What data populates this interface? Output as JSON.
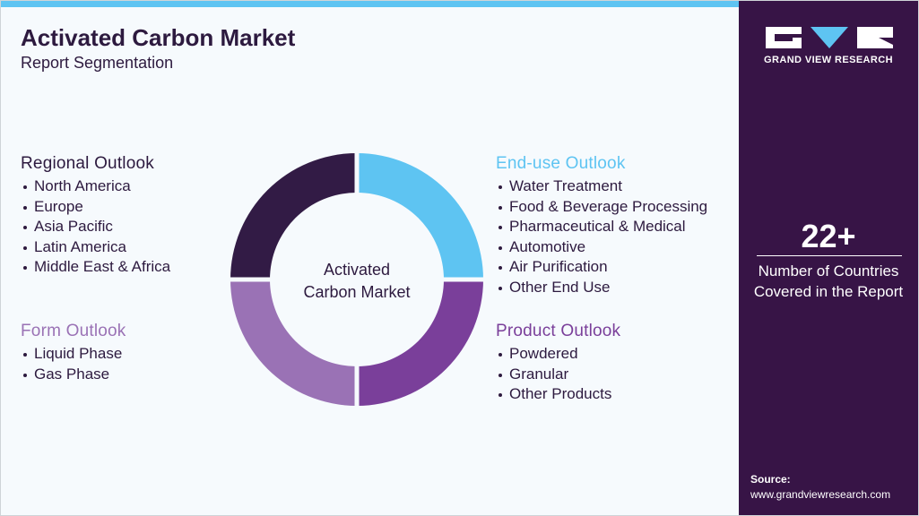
{
  "header": {
    "title": "Activated Carbon Market",
    "subtitle": "Report Segmentation"
  },
  "center_label": [
    "Activated",
    "Carbon Market"
  ],
  "segments": [
    {
      "title": "Regional Outlook",
      "items": [
        "North America",
        "Europe",
        "Asia Pacific",
        "Latin America",
        "Middle East & Africa"
      ]
    },
    {
      "title": "Form Outlook",
      "items": [
        "Liquid Phase",
        "Gas Phase"
      ]
    },
    {
      "title": "End-use Outlook",
      "items": [
        "Water Treatment",
        "Food & Beverage Processing",
        "Pharmaceutical & Medical",
        "Automotive",
        "Air Purification",
        "Other End Use"
      ]
    },
    {
      "title": "Product Outlook",
      "items": [
        "Powdered",
        "Granular",
        "Other Products"
      ]
    }
  ],
  "sidebar": {
    "brand": "GRAND VIEW RESEARCH",
    "stat": "22+",
    "stat_label": [
      "Number of Countries",
      "Covered in the Report"
    ],
    "source_label": "Source:",
    "source_url": "www.grandviewresearch.com"
  }
}
